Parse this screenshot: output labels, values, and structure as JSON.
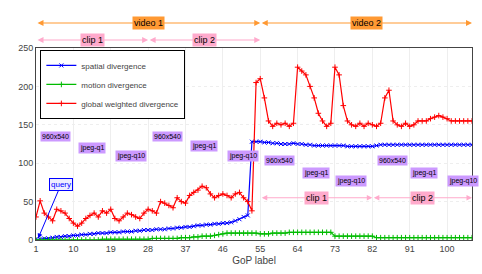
{
  "chart_data": {
    "type": "line",
    "xlabel": "GoP label",
    "x": [
      1,
      2,
      3,
      4,
      5,
      6,
      7,
      8,
      9,
      10,
      11,
      12,
      13,
      14,
      15,
      16,
      17,
      18,
      19,
      20,
      21,
      22,
      23,
      24,
      25,
      26,
      27,
      28,
      29,
      30,
      31,
      32,
      33,
      34,
      35,
      36,
      37,
      38,
      39,
      40,
      41,
      42,
      43,
      44,
      45,
      46,
      47,
      48,
      49,
      50,
      51,
      52,
      53,
      54,
      55,
      56,
      57,
      58,
      59,
      60,
      61,
      62,
      63,
      64,
      65,
      66,
      67,
      68,
      69,
      70,
      71,
      72,
      73,
      74,
      75,
      76,
      77,
      78,
      79,
      80,
      81,
      82,
      83,
      84,
      85,
      86,
      87,
      88,
      89,
      90,
      91,
      92,
      93,
      94,
      95,
      96,
      97,
      98,
      99,
      100,
      101,
      102,
      103,
      104,
      105,
      106
    ],
    "series": [
      {
        "name": "spatial divergence",
        "color": "#0000ff",
        "marker": "x",
        "values": [
          1,
          1,
          2,
          2,
          3,
          4,
          4,
          5,
          5,
          6,
          6,
          7,
          7,
          8,
          8,
          9,
          9,
          9,
          10,
          10,
          10,
          11,
          11,
          11,
          12,
          12,
          13,
          13,
          13,
          14,
          14,
          14,
          15,
          15,
          16,
          16,
          17,
          17,
          18,
          19,
          19,
          20,
          20,
          21,
          21,
          22,
          22,
          23,
          25,
          27,
          30,
          32,
          128,
          128,
          128,
          127,
          127,
          126,
          126,
          125,
          125,
          125,
          126,
          125,
          125,
          124,
          124,
          123,
          123,
          123,
          123,
          123,
          123,
          123,
          123,
          122,
          122,
          122,
          122,
          122,
          122,
          122,
          123,
          124,
          124,
          124,
          124,
          124,
          124,
          124,
          124,
          124,
          124,
          124,
          124,
          124,
          124,
          124,
          124,
          124,
          124,
          124,
          124,
          124,
          124,
          124
        ]
      },
      {
        "name": "motion divergence",
        "color": "#00bb00",
        "marker": "+",
        "values": [
          0,
          0,
          0,
          0,
          0,
          0,
          0,
          0,
          0,
          0,
          0,
          0,
          0,
          0,
          0,
          0,
          1,
          1,
          1,
          1,
          1,
          1,
          1,
          1,
          1,
          1,
          1,
          1,
          2,
          2,
          2,
          2,
          2,
          2,
          2,
          3,
          3,
          3,
          4,
          4,
          5,
          5,
          5,
          6,
          7,
          8,
          9,
          9,
          9,
          9,
          9,
          9,
          9,
          9,
          8,
          8,
          8,
          9,
          9,
          9,
          9,
          10,
          10,
          10,
          10,
          10,
          10,
          10,
          10,
          10,
          10,
          10,
          5,
          5,
          5,
          5,
          5,
          5,
          5,
          5,
          5,
          5,
          3,
          3,
          3,
          3,
          3,
          3,
          3,
          3,
          3,
          3,
          3,
          3,
          3,
          3,
          3,
          3,
          3,
          3,
          3,
          3,
          3,
          3,
          3,
          3
        ]
      },
      {
        "name": "global weighted divergence",
        "color": "#ff0000",
        "marker": "+",
        "values": [
          30,
          51,
          35,
          30,
          25,
          40,
          38,
          35,
          28,
          22,
          18,
          22,
          28,
          32,
          35,
          30,
          38,
          35,
          40,
          28,
          25,
          30,
          35,
          33,
          30,
          28,
          35,
          40,
          38,
          35,
          50,
          48,
          45,
          42,
          55,
          50,
          48,
          58,
          62,
          65,
          70,
          68,
          60,
          55,
          58,
          60,
          58,
          55,
          60,
          62,
          55,
          50,
          38,
          205,
          210,
          185,
          155,
          148,
          152,
          150,
          152,
          148,
          152,
          225,
          220,
          215,
          200,
          185,
          165,
          155,
          148,
          152,
          225,
          215,
          175,
          155,
          150,
          148,
          152,
          148,
          152,
          150,
          148,
          152,
          185,
          195,
          155,
          150,
          148,
          152,
          148,
          150,
          155,
          155,
          155,
          158,
          160,
          162,
          160,
          158,
          155,
          155,
          155,
          155,
          155,
          155
        ]
      }
    ],
    "xlim": [
      1,
      106
    ],
    "ylim": [
      0,
      250
    ],
    "xticks": [
      1,
      10,
      19,
      28,
      37,
      46,
      55,
      64,
      73,
      82,
      91,
      100
    ],
    "yticks": [
      0,
      50,
      100,
      150,
      200,
      250
    ],
    "grid": true,
    "legend": "upper left",
    "annotations": [
      {
        "text": "video 1",
        "x": [
          1,
          55
        ],
        "color": "#ff9933"
      },
      {
        "text": "video 2",
        "x": [
          55,
          106
        ],
        "color": "#ff9933"
      },
      {
        "text": "clip 1",
        "x": [
          1,
          28
        ],
        "color": "#ffaacc"
      },
      {
        "text": "clip 2",
        "x": [
          28,
          55
        ],
        "color": "#ffaacc"
      },
      {
        "text": "clip 1",
        "x": [
          55,
          82
        ],
        "y": 55,
        "color": "#ffaacc"
      },
      {
        "text": "clip 2",
        "x": [
          82,
          106
        ],
        "y": 55,
        "color": "#ffaacc"
      },
      {
        "text": "960x540",
        "x": 2,
        "y": 135,
        "color": "#cc99ff"
      },
      {
        "text": "jpeg-q1",
        "x": 11,
        "y": 120,
        "color": "#cc99ff"
      },
      {
        "text": "jpeg-q10",
        "x": 20,
        "y": 110,
        "color": "#cc99ff"
      },
      {
        "text": "960x540",
        "x": 29,
        "y": 135,
        "color": "#cc99ff"
      },
      {
        "text": "jpeg-q1",
        "x": 38,
        "y": 122,
        "color": "#cc99ff"
      },
      {
        "text": "jpeg-q10",
        "x": 47,
        "y": 110,
        "color": "#cc99ff"
      },
      {
        "text": "960x540",
        "x": 56,
        "y": 103,
        "color": "#cc99ff"
      },
      {
        "text": "jpeg-q1",
        "x": 65,
        "y": 87,
        "color": "#cc99ff"
      },
      {
        "text": "jpeg-q10",
        "x": 73,
        "y": 77,
        "color": "#cc99ff"
      },
      {
        "text": "960x540",
        "x": 83,
        "y": 103,
        "color": "#cc99ff"
      },
      {
        "text": "jpeg-q1",
        "x": 91,
        "y": 87,
        "color": "#cc99ff"
      },
      {
        "text": "jpeg-q10",
        "x": 100,
        "y": 77,
        "color": "#cc99ff"
      },
      {
        "text": "query",
        "x": 1.5,
        "y": 2,
        "from": [
          7,
          72
        ],
        "color": "#0000ff"
      }
    ]
  }
}
